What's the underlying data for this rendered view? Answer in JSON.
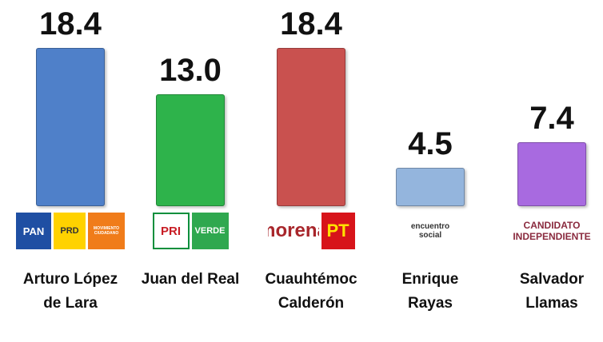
{
  "chart_data": {
    "type": "bar",
    "categories": [
      "Arturo López de Lara",
      "Juan del Real",
      "Cuauhtémoc Calderón",
      "Enrique Rayas",
      "Salvador Llamas"
    ],
    "values": [
      18.4,
      13.0,
      18.4,
      4.5,
      7.4
    ],
    "value_labels": [
      "18.4",
      "13.0",
      "18.4",
      "4.5",
      "7.4"
    ],
    "colors": [
      "#4f80c9",
      "#2eb34b",
      "#c9514f",
      "#94b5dd",
      "#a86ae0"
    ],
    "logos": [
      [
        "PAN",
        "PRD",
        "MOVIMIENTO CIUDADANO"
      ],
      [
        "PRI",
        "VERDE"
      ],
      [
        "morena",
        "PT"
      ],
      [
        "encuentro social"
      ],
      [
        "CANDIDATO INDEPENDIENTE"
      ]
    ]
  }
}
